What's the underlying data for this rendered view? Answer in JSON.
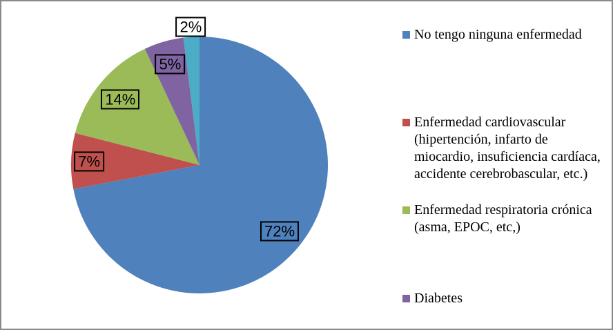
{
  "chart_data": {
    "type": "pie",
    "title": "",
    "start_angle": "12-oclock",
    "direction": "clockwise",
    "legend_position": "right",
    "slices": [
      {
        "label": "No tengo ninguna enfermedad",
        "value": 72,
        "pct_label": "72%",
        "color": "#4F81BD"
      },
      {
        "label": "Enfermedad cardiovascular (hipertención, infarto de miocardio, insuficiencia cardíaca, accidente cerebrobascular, etc.)",
        "value": 7,
        "pct_label": "7%",
        "color": "#C0504D"
      },
      {
        "label": "Enfermedad respiratoria crónica (asma, EPOC, etc,)",
        "value": 14,
        "pct_label": "14%",
        "color": "#9BBB59"
      },
      {
        "label": "Diabetes",
        "value": 5,
        "pct_label": "5%",
        "color": "#8064A2"
      },
      {
        "value": 2,
        "pct_label": "2%",
        "color": "#4BACC6"
      }
    ]
  }
}
